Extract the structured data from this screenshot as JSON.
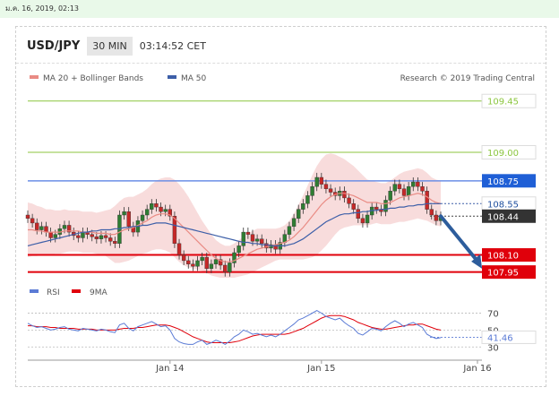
{
  "header": {
    "date": "ม.ค. 16, 2019, 02:13",
    "symbol": "USD/JPY",
    "timeframe": "30 MIN",
    "time": "03:14:52 CET"
  },
  "colors": {
    "ma20": "#e98b84",
    "ma50": "#3d5fa8",
    "band": "#f7d6d6",
    "support": "#e0000b",
    "resistance": "#6c8fe6",
    "target": "#8cc63f",
    "arrow": "#2d5d9c",
    "rsi": "#5b7bd5",
    "rsi_ma": "#e0000b"
  },
  "legend": {
    "ma20_label": "MA 20 + Bollinger Bands",
    "ma50_label": "MA 50",
    "credit": "Research © 2019 Trading Central",
    "rsi_label": "RSI",
    "rsi_ma_label": "9MA"
  },
  "chart_data": {
    "type": "line",
    "title": "USD/JPY",
    "ylim": [
      107.9,
      109.55
    ],
    "levels": [
      {
        "value": 109.45,
        "label": "109.45",
        "kind": "target"
      },
      {
        "value": 109.0,
        "label": "109.00",
        "kind": "target"
      },
      {
        "value": 108.75,
        "label": "108.75",
        "kind": "resistance"
      },
      {
        "value": 108.55,
        "label": "108.55",
        "kind": "pivot"
      },
      {
        "value": 108.44,
        "label": "108.44",
        "kind": "last"
      },
      {
        "value": 108.1,
        "label": "108.10",
        "kind": "support"
      },
      {
        "value": 107.95,
        "label": "107.95",
        "kind": "support"
      }
    ],
    "x_ticks": [
      {
        "index": 31,
        "label": "Jan 14"
      },
      {
        "index": 64,
        "label": "Jan 15"
      },
      {
        "index": 98,
        "label": "Jan 16"
      }
    ],
    "close": [
      108.42,
      108.38,
      108.32,
      108.35,
      108.3,
      108.25,
      108.28,
      108.33,
      108.36,
      108.3,
      108.27,
      108.25,
      108.3,
      108.28,
      108.26,
      108.24,
      108.27,
      108.25,
      108.22,
      108.2,
      108.45,
      108.48,
      108.35,
      108.3,
      108.4,
      108.45,
      108.5,
      108.55,
      108.52,
      108.48,
      108.5,
      108.44,
      108.2,
      108.1,
      108.05,
      108.02,
      108.0,
      108.05,
      108.08,
      107.98,
      108.02,
      108.06,
      108.01,
      107.95,
      108.03,
      108.12,
      108.18,
      108.3,
      108.28,
      108.22,
      108.24,
      108.2,
      108.16,
      108.19,
      108.15,
      108.21,
      108.28,
      108.35,
      108.42,
      108.5,
      108.55,
      108.62,
      108.7,
      108.78,
      108.72,
      108.68,
      108.65,
      108.62,
      108.66,
      108.6,
      108.55,
      108.5,
      108.42,
      108.38,
      108.45,
      108.52,
      108.5,
      108.48,
      108.58,
      108.66,
      108.72,
      108.68,
      108.62,
      108.7,
      108.74,
      108.7,
      108.66,
      108.5,
      108.45,
      108.4,
      108.44
    ],
    "ma20": [
      108.32,
      108.32,
      108.31,
      108.31,
      108.3,
      108.3,
      108.3,
      108.3,
      108.31,
      108.31,
      108.31,
      108.31,
      108.3,
      108.3,
      108.3,
      108.29,
      108.29,
      108.29,
      108.28,
      108.28,
      108.3,
      108.32,
      108.33,
      108.34,
      108.36,
      108.38,
      108.4,
      108.43,
      108.45,
      108.46,
      108.46,
      108.45,
      108.42,
      108.38,
      108.34,
      108.3,
      108.26,
      108.22,
      108.18,
      108.14,
      108.1,
      108.07,
      108.05,
      108.04,
      108.04,
      108.05,
      108.07,
      108.09,
      108.11,
      108.13,
      108.15,
      108.16,
      108.17,
      108.18,
      108.19,
      108.2,
      108.21,
      108.23,
      108.26,
      108.3,
      108.34,
      108.39,
      108.44,
      108.49,
      108.54,
      108.58,
      108.61,
      108.63,
      108.64,
      108.64,
      108.63,
      108.62,
      108.6,
      108.58,
      108.56,
      108.56,
      108.56,
      108.55,
      108.55,
      108.56,
      108.58,
      108.6,
      108.61,
      108.62,
      108.63,
      108.64,
      108.63,
      108.61,
      108.58,
      108.56,
      108.55
    ],
    "ma50": [
      108.18,
      108.19,
      108.2,
      108.21,
      108.22,
      108.23,
      108.24,
      108.25,
      108.26,
      108.27,
      108.28,
      108.29,
      108.3,
      108.3,
      108.31,
      108.31,
      108.32,
      108.32,
      108.32,
      108.33,
      108.33,
      108.34,
      108.34,
      108.35,
      108.35,
      108.36,
      108.36,
      108.37,
      108.38,
      108.38,
      108.38,
      108.37,
      108.36,
      108.35,
      108.34,
      108.33,
      108.32,
      108.31,
      108.3,
      108.29,
      108.28,
      108.27,
      108.26,
      108.25,
      108.24,
      108.23,
      108.22,
      108.21,
      108.21,
      108.2,
      108.2,
      108.19,
      108.19,
      108.18,
      108.18,
      108.18,
      108.18,
      108.19,
      108.2,
      108.22,
      108.24,
      108.27,
      108.3,
      108.33,
      108.36,
      108.39,
      108.41,
      108.43,
      108.45,
      108.46,
      108.46,
      108.47,
      108.47,
      108.48,
      108.48,
      108.49,
      108.49,
      108.5,
      108.5,
      108.51,
      108.51,
      108.52,
      108.52,
      108.53,
      108.53,
      108.54,
      108.54,
      108.55,
      108.55,
      108.55,
      108.55
    ],
    "band_width": [
      0.24,
      0.23,
      0.22,
      0.21,
      0.2,
      0.2,
      0.19,
      0.19,
      0.19,
      0.18,
      0.18,
      0.18,
      0.18,
      0.18,
      0.18,
      0.18,
      0.19,
      0.2,
      0.22,
      0.25,
      0.27,
      0.28,
      0.28,
      0.27,
      0.27,
      0.27,
      0.28,
      0.29,
      0.3,
      0.31,
      0.32,
      0.33,
      0.34,
      0.34,
      0.33,
      0.31,
      0.28,
      0.25,
      0.22,
      0.2,
      0.18,
      0.16,
      0.15,
      0.14,
      0.14,
      0.15,
      0.16,
      0.17,
      0.18,
      0.18,
      0.18,
      0.17,
      0.16,
      0.15,
      0.14,
      0.14,
      0.15,
      0.17,
      0.2,
      0.24,
      0.28,
      0.32,
      0.36,
      0.39,
      0.4,
      0.4,
      0.38,
      0.35,
      0.32,
      0.3,
      0.28,
      0.26,
      0.24,
      0.22,
      0.2,
      0.19,
      0.18,
      0.18,
      0.18,
      0.19,
      0.2,
      0.21,
      0.22,
      0.22,
      0.22,
      0.22,
      0.22,
      0.21,
      0.2,
      0.2,
      0.2
    ],
    "projection": {
      "from_index": 90,
      "from_value": 108.44,
      "to_index": 99,
      "to_value": 107.98
    },
    "rsi": {
      "ylim": [
        25,
        80
      ],
      "levels": [
        {
          "value": 70,
          "label": "70"
        },
        {
          "value": 50,
          "label": "50"
        },
        {
          "value": 30,
          "label": "30"
        }
      ],
      "last": 41.46,
      "last_label": "41.46",
      "values": [
        58,
        55,
        53,
        54,
        52,
        50,
        51,
        53,
        54,
        51,
        50,
        49,
        52,
        51,
        50,
        49,
        51,
        50,
        48,
        47,
        56,
        58,
        52,
        49,
        54,
        56,
        58,
        60,
        57,
        54,
        55,
        50,
        40,
        36,
        34,
        33,
        33,
        36,
        38,
        33,
        35,
        38,
        36,
        33,
        37,
        42,
        45,
        50,
        48,
        45,
        46,
        44,
        42,
        44,
        42,
        45,
        49,
        53,
        57,
        62,
        64,
        67,
        70,
        73,
        70,
        66,
        64,
        62,
        64,
        59,
        55,
        52,
        46,
        44,
        48,
        52,
        51,
        49,
        54,
        58,
        61,
        58,
        54,
        57,
        59,
        56,
        53,
        45,
        42,
        40,
        41
      ],
      "ma9": [
        55,
        55,
        54,
        54,
        54,
        53,
        53,
        52,
        52,
        52,
        52,
        51,
        51,
        51,
        51,
        50,
        50,
        50,
        50,
        50,
        51,
        52,
        52,
        52,
        53,
        53,
        54,
        55,
        56,
        56,
        56,
        55,
        53,
        51,
        48,
        45,
        42,
        40,
        38,
        36,
        35,
        35,
        35,
        35,
        35,
        36,
        37,
        39,
        41,
        43,
        44,
        45,
        45,
        45,
        45,
        45,
        45,
        46,
        48,
        50,
        52,
        55,
        58,
        61,
        64,
        66,
        67,
        67,
        67,
        66,
        64,
        62,
        59,
        57,
        55,
        53,
        52,
        51,
        51,
        52,
        53,
        54,
        55,
        56,
        56,
        57,
        57,
        55,
        53,
        51,
        50
      ]
    }
  }
}
